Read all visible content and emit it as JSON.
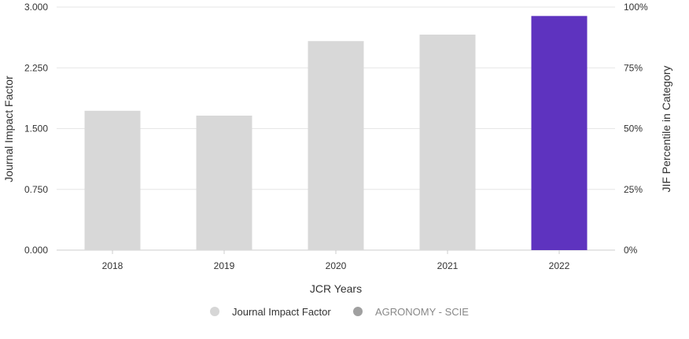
{
  "chart_data": {
    "type": "bar",
    "categories": [
      "2018",
      "2019",
      "2020",
      "2021",
      "2022"
    ],
    "values": [
      1.72,
      1.66,
      2.58,
      2.66,
      2.89
    ],
    "highlight_index": 4,
    "xlabel": "JCR Years",
    "ylabel": "Journal Impact Factor",
    "ylabel_right": "JIF Percentile in Category",
    "ylim": [
      0,
      3.0
    ],
    "yticks": [
      "0.000",
      "0.750",
      "1.500",
      "2.250",
      "3.000"
    ],
    "ylim_right": [
      0,
      100
    ],
    "yticks_right": [
      "0%",
      "25%",
      "50%",
      "75%",
      "100%"
    ],
    "grid": true,
    "legend_position": "bottom-center",
    "legend": [
      {
        "label": "Journal Impact Factor",
        "color": "#d6d6d6",
        "text_color": "#333333"
      },
      {
        "label": "AGRONOMY - SCIE",
        "color": "#a0a0a0",
        "text_color": "#888888"
      }
    ],
    "colors": {
      "bar": "#d8d8d8",
      "highlight": "#5e33bf",
      "grid": "#e6e6e6",
      "axis": "#cccccc"
    }
  }
}
